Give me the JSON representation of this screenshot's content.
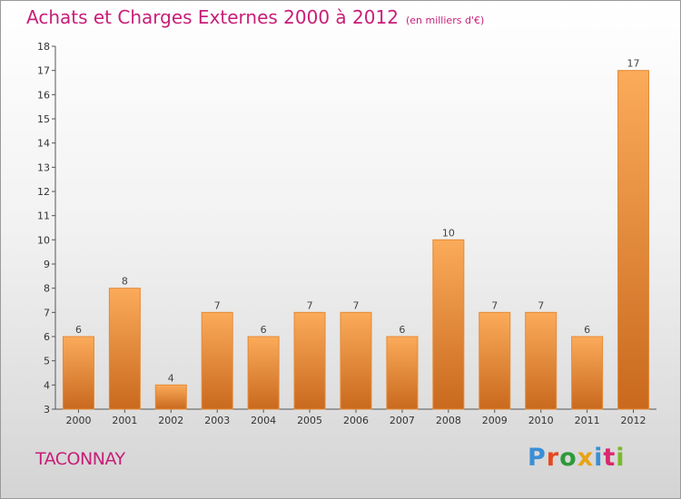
{
  "header": {
    "title": "Achats et Charges Externes 2000 à 2012",
    "subtitle": "(en milliers d'€)"
  },
  "footer": {
    "commune": "TACONNAY",
    "logo_text": "Proxiti",
    "logo_colors": [
      "#3a8fd6",
      "#e8491d",
      "#2e9a3a",
      "#e8a317",
      "#3a8fd6",
      "#d9286e",
      "#7ab929"
    ]
  },
  "colors": {
    "title": "#c81e78",
    "bar_light": "#fbab5a",
    "bar_dark": "#c9691e",
    "bar_edge": "#e58a35"
  },
  "chart_data": {
    "type": "bar",
    "categories": [
      "2000",
      "2001",
      "2002",
      "2003",
      "2004",
      "2005",
      "2006",
      "2007",
      "2008",
      "2009",
      "2010",
      "2011",
      "2012"
    ],
    "values": [
      6,
      8,
      4,
      7,
      6,
      7,
      7,
      6,
      10,
      7,
      7,
      6,
      17
    ],
    "data_labels": [
      "6",
      "8",
      "4",
      "7",
      "6",
      "7",
      "7",
      "6",
      "10",
      "7",
      "7",
      "6",
      "17"
    ],
    "ylim": [
      3,
      18
    ],
    "yticks": [
      3,
      4,
      5,
      6,
      7,
      8,
      9,
      10,
      11,
      12,
      13,
      14,
      15,
      16,
      17,
      18
    ],
    "grid": false,
    "xlabel": "",
    "ylabel": ""
  }
}
